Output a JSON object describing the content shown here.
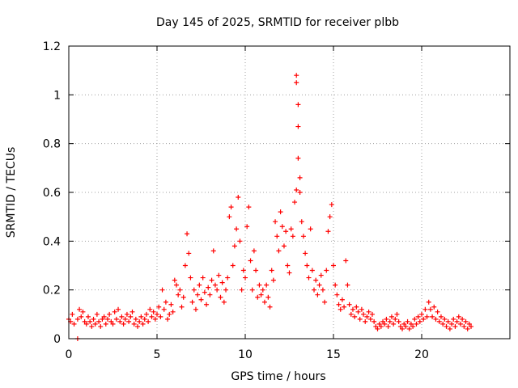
{
  "chart_data": {
    "type": "scatter",
    "title": "Day 145 of 2025, SRMTID for receiver plbb",
    "xlabel": "GPS time / hours",
    "ylabel": "SRMTID / TECUs",
    "xlim": [
      0,
      25
    ],
    "ylim": [
      0,
      1.2
    ],
    "xticks": [
      {
        "value": 0,
        "label": "0"
      },
      {
        "value": 5,
        "label": "5"
      },
      {
        "value": 10,
        "label": "10"
      },
      {
        "value": 15,
        "label": "15"
      },
      {
        "value": 20,
        "label": "20"
      }
    ],
    "yticks": [
      {
        "value": 0,
        "label": "0"
      },
      {
        "value": 0.2,
        "label": "0.2"
      },
      {
        "value": 0.4,
        "label": "0.4"
      },
      {
        "value": 0.6,
        "label": "0.6"
      },
      {
        "value": 0.8,
        "label": "0.8"
      },
      {
        "value": 1.0,
        "label": "1"
      },
      {
        "value": 1.2,
        "label": "1.2"
      }
    ],
    "grid": true,
    "marker": "+",
    "color": "#ff0000",
    "series": [
      {
        "name": "SRMTID",
        "points": [
          [
            0.0,
            0.08
          ],
          [
            0.1,
            0.07
          ],
          [
            0.2,
            0.1
          ],
          [
            0.3,
            0.06
          ],
          [
            0.5,
            0.08
          ],
          [
            0.5,
            0.0
          ],
          [
            0.6,
            0.12
          ],
          [
            0.7,
            0.09
          ],
          [
            0.8,
            0.11
          ],
          [
            0.9,
            0.07
          ],
          [
            1.0,
            0.06
          ],
          [
            1.1,
            0.09
          ],
          [
            1.2,
            0.07
          ],
          [
            1.3,
            0.05
          ],
          [
            1.4,
            0.08
          ],
          [
            1.5,
            0.06
          ],
          [
            1.6,
            0.1
          ],
          [
            1.7,
            0.07
          ],
          [
            1.8,
            0.05
          ],
          [
            1.9,
            0.08
          ],
          [
            2.0,
            0.09
          ],
          [
            2.1,
            0.06
          ],
          [
            2.2,
            0.08
          ],
          [
            2.3,
            0.1
          ],
          [
            2.4,
            0.07
          ],
          [
            2.5,
            0.06
          ],
          [
            2.6,
            0.11
          ],
          [
            2.7,
            0.08
          ],
          [
            2.8,
            0.12
          ],
          [
            2.9,
            0.07
          ],
          [
            3.0,
            0.09
          ],
          [
            3.1,
            0.06
          ],
          [
            3.2,
            0.08
          ],
          [
            3.3,
            0.1
          ],
          [
            3.4,
            0.07
          ],
          [
            3.5,
            0.09
          ],
          [
            3.6,
            0.11
          ],
          [
            3.7,
            0.06
          ],
          [
            3.8,
            0.08
          ],
          [
            3.9,
            0.05
          ],
          [
            4.0,
            0.07
          ],
          [
            4.1,
            0.09
          ],
          [
            4.2,
            0.06
          ],
          [
            4.3,
            0.08
          ],
          [
            4.4,
            0.1
          ],
          [
            4.5,
            0.07
          ],
          [
            4.6,
            0.12
          ],
          [
            4.7,
            0.09
          ],
          [
            4.8,
            0.11
          ],
          [
            4.9,
            0.08
          ],
          [
            5.0,
            0.1
          ],
          [
            5.1,
            0.13
          ],
          [
            5.2,
            0.09
          ],
          [
            5.3,
            0.2
          ],
          [
            5.4,
            0.12
          ],
          [
            5.5,
            0.15
          ],
          [
            5.6,
            0.08
          ],
          [
            5.7,
            0.1
          ],
          [
            5.8,
            0.14
          ],
          [
            5.9,
            0.11
          ],
          [
            6.0,
            0.24
          ],
          [
            6.1,
            0.22
          ],
          [
            6.2,
            0.18
          ],
          [
            6.3,
            0.2
          ],
          [
            6.4,
            0.13
          ],
          [
            6.5,
            0.17
          ],
          [
            6.6,
            0.3
          ],
          [
            6.7,
            0.43
          ],
          [
            6.8,
            0.35
          ],
          [
            6.9,
            0.25
          ],
          [
            7.0,
            0.15
          ],
          [
            7.1,
            0.2
          ],
          [
            7.2,
            0.12
          ],
          [
            7.3,
            0.18
          ],
          [
            7.4,
            0.22
          ],
          [
            7.5,
            0.16
          ],
          [
            7.6,
            0.25
          ],
          [
            7.7,
            0.19
          ],
          [
            7.8,
            0.14
          ],
          [
            7.9,
            0.21
          ],
          [
            8.0,
            0.18
          ],
          [
            8.1,
            0.24
          ],
          [
            8.2,
            0.36
          ],
          [
            8.3,
            0.22
          ],
          [
            8.4,
            0.2
          ],
          [
            8.5,
            0.26
          ],
          [
            8.6,
            0.17
          ],
          [
            8.7,
            0.23
          ],
          [
            8.8,
            0.15
          ],
          [
            8.9,
            0.2
          ],
          [
            9.0,
            0.25
          ],
          [
            9.1,
            0.5
          ],
          [
            9.2,
            0.54
          ],
          [
            9.3,
            0.3
          ],
          [
            9.4,
            0.38
          ],
          [
            9.5,
            0.45
          ],
          [
            9.6,
            0.58
          ],
          [
            9.7,
            0.4
          ],
          [
            9.8,
            0.2
          ],
          [
            9.9,
            0.28
          ],
          [
            10.0,
            0.25
          ],
          [
            10.1,
            0.46
          ],
          [
            10.2,
            0.54
          ],
          [
            10.3,
            0.32
          ],
          [
            10.4,
            0.2
          ],
          [
            10.5,
            0.36
          ],
          [
            10.6,
            0.28
          ],
          [
            10.7,
            0.17
          ],
          [
            10.8,
            0.22
          ],
          [
            10.9,
            0.18
          ],
          [
            11.0,
            0.2
          ],
          [
            11.1,
            0.15
          ],
          [
            11.2,
            0.22
          ],
          [
            11.3,
            0.17
          ],
          [
            11.4,
            0.13
          ],
          [
            11.5,
            0.28
          ],
          [
            11.6,
            0.24
          ],
          [
            11.7,
            0.48
          ],
          [
            11.8,
            0.42
          ],
          [
            11.9,
            0.36
          ],
          [
            12.0,
            0.52
          ],
          [
            12.1,
            0.46
          ],
          [
            12.2,
            0.38
          ],
          [
            12.3,
            0.44
          ],
          [
            12.4,
            0.3
          ],
          [
            12.5,
            0.27
          ],
          [
            12.6,
            0.45
          ],
          [
            12.7,
            0.42
          ],
          [
            12.8,
            0.56
          ],
          [
            12.9,
            0.61
          ],
          [
            12.9,
            1.08
          ],
          [
            12.9,
            1.05
          ],
          [
            13.0,
            0.96
          ],
          [
            13.0,
            0.87
          ],
          [
            13.0,
            0.74
          ],
          [
            13.1,
            0.66
          ],
          [
            13.1,
            0.6
          ],
          [
            13.2,
            0.48
          ],
          [
            13.3,
            0.42
          ],
          [
            13.4,
            0.35
          ],
          [
            13.5,
            0.3
          ],
          [
            13.6,
            0.25
          ],
          [
            13.7,
            0.45
          ],
          [
            13.8,
            0.28
          ],
          [
            13.9,
            0.2
          ],
          [
            14.0,
            0.24
          ],
          [
            14.1,
            0.18
          ],
          [
            14.2,
            0.22
          ],
          [
            14.3,
            0.26
          ],
          [
            14.4,
            0.2
          ],
          [
            14.5,
            0.15
          ],
          [
            14.6,
            0.28
          ],
          [
            14.7,
            0.44
          ],
          [
            14.8,
            0.5
          ],
          [
            14.9,
            0.55
          ],
          [
            15.0,
            0.3
          ],
          [
            15.1,
            0.22
          ],
          [
            15.2,
            0.18
          ],
          [
            15.3,
            0.14
          ],
          [
            15.4,
            0.12
          ],
          [
            15.5,
            0.16
          ],
          [
            15.6,
            0.13
          ],
          [
            15.7,
            0.32
          ],
          [
            15.8,
            0.22
          ],
          [
            15.9,
            0.14
          ],
          [
            16.0,
            0.1
          ],
          [
            16.1,
            0.12
          ],
          [
            16.2,
            0.09
          ],
          [
            16.3,
            0.13
          ],
          [
            16.4,
            0.11
          ],
          [
            16.5,
            0.08
          ],
          [
            16.6,
            0.12
          ],
          [
            16.7,
            0.1
          ],
          [
            16.8,
            0.07
          ],
          [
            16.9,
            0.09
          ],
          [
            17.0,
            0.11
          ],
          [
            17.1,
            0.08
          ],
          [
            17.2,
            0.1
          ],
          [
            17.3,
            0.07
          ],
          [
            17.4,
            0.05
          ],
          [
            17.5,
            0.04
          ],
          [
            17.6,
            0.06
          ],
          [
            17.7,
            0.05
          ],
          [
            17.8,
            0.07
          ],
          [
            17.9,
            0.06
          ],
          [
            18.0,
            0.08
          ],
          [
            18.1,
            0.05
          ],
          [
            18.2,
            0.07
          ],
          [
            18.3,
            0.09
          ],
          [
            18.4,
            0.06
          ],
          [
            18.5,
            0.08
          ],
          [
            18.6,
            0.1
          ],
          [
            18.7,
            0.07
          ],
          [
            18.8,
            0.05
          ],
          [
            18.9,
            0.04
          ],
          [
            19.0,
            0.06
          ],
          [
            19.1,
            0.05
          ],
          [
            19.2,
            0.07
          ],
          [
            19.3,
            0.04
          ],
          [
            19.4,
            0.06
          ],
          [
            19.5,
            0.05
          ],
          [
            19.6,
            0.08
          ],
          [
            19.7,
            0.06
          ],
          [
            19.8,
            0.09
          ],
          [
            19.9,
            0.07
          ],
          [
            20.0,
            0.1
          ],
          [
            20.1,
            0.08
          ],
          [
            20.2,
            0.12
          ],
          [
            20.3,
            0.09
          ],
          [
            20.4,
            0.15
          ],
          [
            20.5,
            0.12
          ],
          [
            20.6,
            0.09
          ],
          [
            20.7,
            0.13
          ],
          [
            20.8,
            0.08
          ],
          [
            20.9,
            0.11
          ],
          [
            21.0,
            0.07
          ],
          [
            21.1,
            0.09
          ],
          [
            21.2,
            0.06
          ],
          [
            21.3,
            0.08
          ],
          [
            21.4,
            0.05
          ],
          [
            21.5,
            0.07
          ],
          [
            21.6,
            0.04
          ],
          [
            21.7,
            0.06
          ],
          [
            21.8,
            0.08
          ],
          [
            21.9,
            0.05
          ],
          [
            22.0,
            0.07
          ],
          [
            22.1,
            0.09
          ],
          [
            22.2,
            0.06
          ],
          [
            22.3,
            0.08
          ],
          [
            22.4,
            0.05
          ],
          [
            22.5,
            0.07
          ],
          [
            22.6,
            0.04
          ],
          [
            22.7,
            0.06
          ],
          [
            22.8,
            0.05
          ]
        ]
      }
    ]
  }
}
